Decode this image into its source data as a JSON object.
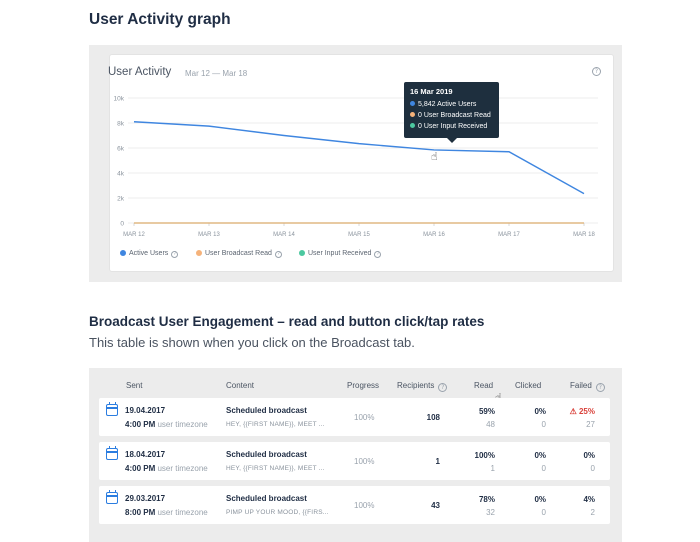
{
  "page": {
    "title": "User Activity graph",
    "engagement_title": "Broadcast User Engagement – read and button click/tap rates",
    "engagement_subtitle": "This table is shown when you click on the Broadcast tab."
  },
  "graph": {
    "title": "User Activity",
    "range": "Mar 12 — Mar 18",
    "help_glyph": "?",
    "tooltip": {
      "date": "16 Mar 2019",
      "rows": [
        {
          "text": "5,842 Active Users",
          "color": "#3f86e0"
        },
        {
          "text": "0 User Broadcast Read",
          "color": "#f5b27a"
        },
        {
          "text": "0 User Input Received",
          "color": "#4cc8a0"
        }
      ]
    },
    "legend": [
      {
        "label": "Active Users",
        "color": "#3f86e0"
      },
      {
        "label": "User Broadcast Read",
        "color": "#f5b27a"
      },
      {
        "label": "User Input Received",
        "color": "#4cc8a0"
      }
    ]
  },
  "chart_data": {
    "type": "line",
    "x": [
      "MAR 12",
      "MAR 13",
      "MAR 14",
      "MAR 15",
      "MAR 16",
      "MAR 17",
      "MAR 18"
    ],
    "y_ticks": [
      "0",
      "2k",
      "4k",
      "6k",
      "8k",
      "10k"
    ],
    "ylim": [
      0,
      10000
    ],
    "grid": true,
    "legend_position": "bottom-left",
    "series": [
      {
        "name": "Active Users",
        "color": "#3f86e0",
        "values": [
          8100,
          7750,
          7000,
          6350,
          5842,
          5700,
          2350
        ]
      },
      {
        "name": "User Broadcast Read",
        "color": "#f5b27a",
        "values": [
          0,
          0,
          0,
          0,
          0,
          0,
          0
        ]
      },
      {
        "name": "User Input Received",
        "color": "#4cc8a0",
        "values": [
          0,
          0,
          0,
          0,
          0,
          0,
          0
        ]
      }
    ]
  },
  "table": {
    "headers": {
      "sent": "Sent",
      "content": "Content",
      "progress": "Progress",
      "recipients": "Recipients",
      "read": "Read",
      "clicked": "Clicked",
      "failed": "Failed"
    },
    "rows": [
      {
        "date": "19.04.2017",
        "time": "4:00 PM",
        "tz": "user timezone",
        "title": "Scheduled broadcast",
        "preview": "HEY, {{FIRST NAME}}, MEET ...",
        "progress": "100%",
        "recipients": "108",
        "read_pct": "59%",
        "read_count": "48",
        "clicked_pct": "0%",
        "clicked_count": "0",
        "failed_pct": "25%",
        "failed_count": "27",
        "failed_warning": true
      },
      {
        "date": "18.04.2017",
        "time": "4:00 PM",
        "tz": "user timezone",
        "title": "Scheduled broadcast",
        "preview": "HEY, {{FIRST NAME}}, MEET ...",
        "progress": "100%",
        "recipients": "1",
        "read_pct": "100%",
        "read_count": "1",
        "clicked_pct": "0%",
        "clicked_count": "0",
        "failed_pct": "0%",
        "failed_count": "0",
        "failed_warning": false
      },
      {
        "date": "29.03.2017",
        "time": "8:00 PM",
        "tz": "user timezone",
        "title": "Scheduled broadcast",
        "preview": "PIMP UP YOUR MOOD, {{FIRS...",
        "progress": "100%",
        "recipients": "43",
        "read_pct": "78%",
        "read_count": "32",
        "clicked_pct": "0%",
        "clicked_count": "0",
        "failed_pct": "4%",
        "failed_count": "2",
        "failed_warning": false
      }
    ]
  }
}
